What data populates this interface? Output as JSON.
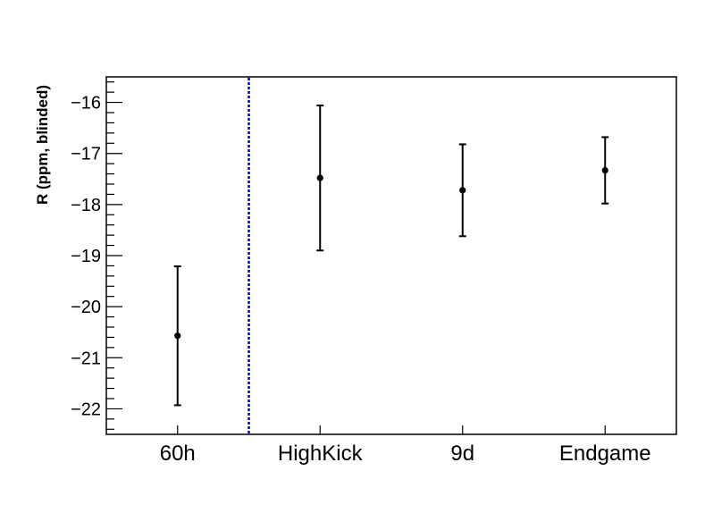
{
  "chart_data": {
    "type": "scatter",
    "title": "",
    "xlabel": "",
    "ylabel": "R (ppm, blinded)",
    "categories": [
      "60h",
      "HighKick",
      "9d",
      "Endgame"
    ],
    "series": [
      {
        "values": [
          -20.57,
          -17.48,
          -17.72,
          -17.33
        ],
        "errors": [
          1.36,
          1.42,
          0.9,
          0.65
        ]
      }
    ],
    "ylim": [
      -22.5,
      -15.5
    ],
    "yticks": [
      -22,
      -21,
      -20,
      -19,
      -18,
      -17,
      -16
    ],
    "ytick_labels": [
      "−22",
      "−21",
      "−20",
      "−19",
      "−18",
      "−17",
      "−16"
    ],
    "separator_after_category": 0,
    "separator_color": "#0000cc",
    "marker_color": "#000000",
    "grid": false,
    "legend": "none"
  }
}
